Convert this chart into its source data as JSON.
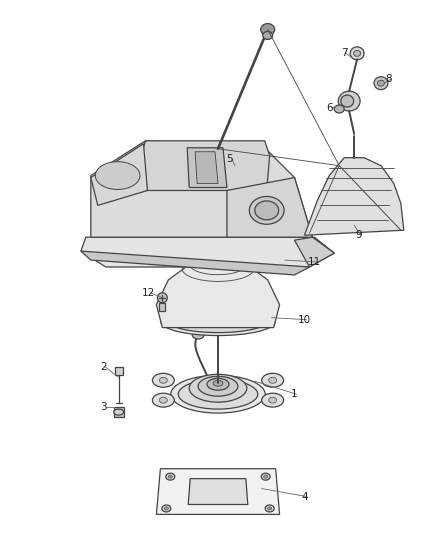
{
  "background_color": "#ffffff",
  "line_color": "#444444",
  "label_color": "#222222",
  "fig_width": 4.38,
  "fig_height": 5.33,
  "dpi": 100
}
